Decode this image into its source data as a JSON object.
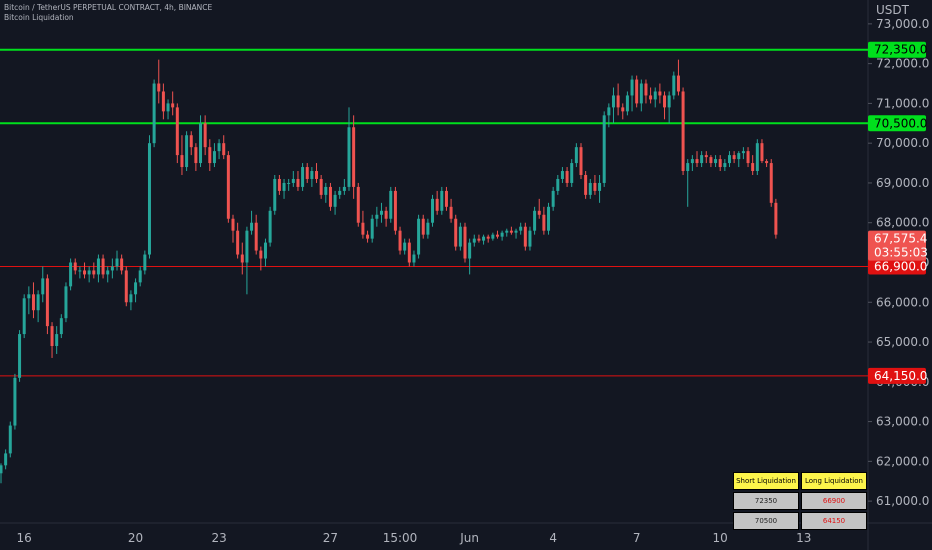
{
  "header": {
    "line1": "Bitcoin / TetherUS PERPETUAL CONTRACT, 4h, BINANCE",
    "line2": "Bitcoin Liquidation"
  },
  "axis": {
    "currency": "USDT"
  },
  "colors": {
    "up": "#26a69a",
    "down": "#ef5350",
    "green_level": "#00e01d",
    "red_level": "#e01111",
    "background": "#131722"
  },
  "chart_data": {
    "type": "candlestick",
    "ylim": [
      60450,
      73600
    ],
    "y_ticks": [
      {
        "value": 61000,
        "label": "61,000.0"
      },
      {
        "value": 62000,
        "label": "62,000.0"
      },
      {
        "value": 63000,
        "label": "63,000.0"
      },
      {
        "value": 64000,
        "label": "64,000.0"
      },
      {
        "value": 65000,
        "label": "65,000.0"
      },
      {
        "value": 66000,
        "label": "66,000.0"
      },
      {
        "value": 67000,
        "label": "67,000.0"
      },
      {
        "value": 68000,
        "label": "68,000.0"
      },
      {
        "value": 69000,
        "label": "69,000.0"
      },
      {
        "value": 70000,
        "label": "70,000.0"
      },
      {
        "value": 71000,
        "label": "71,000.0"
      },
      {
        "value": 72000,
        "label": "72,000.0"
      },
      {
        "value": 73000,
        "label": "73,000.0"
      }
    ],
    "x_ticks": [
      {
        "index": 5,
        "label": "16"
      },
      {
        "index": 29,
        "label": "20"
      },
      {
        "index": 47,
        "label": "23"
      },
      {
        "index": 71,
        "label": "27"
      },
      {
        "index": 86,
        "label": "15:00"
      },
      {
        "index": 101,
        "label": "Jun"
      },
      {
        "index": 119,
        "label": "4"
      },
      {
        "index": 137,
        "label": "7"
      },
      {
        "index": 155,
        "label": "10"
      },
      {
        "index": 173,
        "label": "13"
      }
    ],
    "levels": [
      {
        "value": 72350,
        "label": "72,350.0",
        "kind": "short"
      },
      {
        "value": 70500,
        "label": "70,500.0",
        "kind": "short"
      },
      {
        "value": 66900,
        "label": "66,900.0",
        "kind": "long"
      },
      {
        "value": 64150,
        "label": "64,150.0",
        "kind": "long"
      }
    ],
    "last_price": {
      "value": 67575.4,
      "label": "67,575.4",
      "countdown": "03:55:03"
    },
    "candles": [
      [
        61700,
        61950,
        61450,
        61900
      ],
      [
        61900,
        62300,
        61800,
        62200
      ],
      [
        62200,
        63000,
        62100,
        62900
      ],
      [
        62900,
        64200,
        62800,
        64100
      ],
      [
        64100,
        65300,
        64000,
        65200
      ],
      [
        65200,
        66200,
        65100,
        66100
      ],
      [
        66100,
        66400,
        65700,
        66200
      ],
      [
        66200,
        66500,
        65600,
        65800
      ],
      [
        65800,
        66300,
        65500,
        66200
      ],
      [
        66200,
        66900,
        66000,
        66600
      ],
      [
        66600,
        66700,
        65200,
        65400
      ],
      [
        65400,
        65500,
        64600,
        64900
      ],
      [
        64900,
        65400,
        64700,
        65200
      ],
      [
        65200,
        65700,
        65100,
        65600
      ],
      [
        65600,
        66500,
        65500,
        66400
      ],
      [
        66400,
        67100,
        66300,
        67000
      ],
      [
        67000,
        67100,
        66700,
        66800
      ],
      [
        66800,
        66900,
        66600,
        66800
      ],
      [
        66800,
        67000,
        66600,
        66700
      ],
      [
        66700,
        66900,
        66500,
        66800
      ],
      [
        66800,
        67000,
        66600,
        66700
      ],
      [
        66700,
        67200,
        66500,
        67100
      ],
      [
        67100,
        67200,
        66600,
        66700
      ],
      [
        66700,
        66900,
        66500,
        66800
      ],
      [
        66800,
        67100,
        66600,
        66900
      ],
      [
        66900,
        67300,
        66800,
        67100
      ],
      [
        67100,
        67200,
        66700,
        66800
      ],
      [
        66800,
        66900,
        65900,
        66000
      ],
      [
        66000,
        66300,
        65800,
        66200
      ],
      [
        66200,
        66600,
        66000,
        66500
      ],
      [
        66500,
        66900,
        66400,
        66800
      ],
      [
        66800,
        67300,
        66700,
        67200
      ],
      [
        67200,
        70200,
        67100,
        70000
      ],
      [
        70000,
        71600,
        69900,
        71500
      ],
      [
        71500,
        72100,
        71000,
        71300
      ],
      [
        71300,
        71500,
        70600,
        70800
      ],
      [
        70800,
        71100,
        70600,
        71000
      ],
      [
        71000,
        71300,
        70700,
        70900
      ],
      [
        70900,
        71000,
        69500,
        69700
      ],
      [
        69700,
        70200,
        69200,
        69400
      ],
      [
        69400,
        70300,
        69300,
        70200
      ],
      [
        70200,
        70300,
        69700,
        69900
      ],
      [
        69900,
        70000,
        69300,
        69500
      ],
      [
        69500,
        70700,
        69400,
        70500
      ],
      [
        70500,
        70700,
        69700,
        69900
      ],
      [
        69900,
        70100,
        69300,
        69500
      ],
      [
        69500,
        70000,
        69400,
        69800
      ],
      [
        69800,
        70100,
        69600,
        70000
      ],
      [
        70000,
        70200,
        69600,
        69700
      ],
      [
        69700,
        69800,
        68000,
        68100
      ],
      [
        68100,
        68200,
        67500,
        67800
      ],
      [
        67800,
        68000,
        67100,
        67200
      ],
      [
        67200,
        67500,
        66700,
        67000
      ],
      [
        67000,
        67900,
        66200,
        67800
      ],
      [
        67800,
        68300,
        67700,
        68000
      ],
      [
        68000,
        68200,
        67200,
        67300
      ],
      [
        67300,
        67400,
        66800,
        67100
      ],
      [
        67100,
        67600,
        66900,
        67500
      ],
      [
        67500,
        68400,
        67400,
        68300
      ],
      [
        68300,
        69200,
        68200,
        69100
      ],
      [
        69100,
        69200,
        68700,
        68800
      ],
      [
        68800,
        69100,
        68600,
        69000
      ],
      [
        69000,
        69100,
        68800,
        69000
      ],
      [
        69000,
        69300,
        68900,
        69100
      ],
      [
        69100,
        69300,
        68800,
        68900
      ],
      [
        68900,
        69500,
        68800,
        69400
      ],
      [
        69400,
        69500,
        69000,
        69100
      ],
      [
        69100,
        69400,
        68900,
        69300
      ],
      [
        69300,
        69500,
        69000,
        69100
      ],
      [
        69100,
        69200,
        68600,
        68700
      ],
      [
        68700,
        69000,
        68500,
        68900
      ],
      [
        68900,
        69000,
        68300,
        68400
      ],
      [
        68400,
        68800,
        68200,
        68700
      ],
      [
        68700,
        68900,
        68600,
        68800
      ],
      [
        68800,
        69100,
        68700,
        68900
      ],
      [
        68900,
        70900,
        68800,
        70400
      ],
      [
        70400,
        70700,
        68600,
        68900
      ],
      [
        68900,
        69000,
        67900,
        68000
      ],
      [
        68000,
        68300,
        67600,
        67700
      ],
      [
        67700,
        67800,
        67500,
        67600
      ],
      [
        67600,
        68200,
        67500,
        68100
      ],
      [
        68100,
        68400,
        67900,
        68200
      ],
      [
        68200,
        68500,
        68000,
        68300
      ],
      [
        68300,
        68400,
        67900,
        68100
      ],
      [
        68100,
        68900,
        68000,
        68800
      ],
      [
        68800,
        68900,
        67700,
        67800
      ],
      [
        67800,
        67900,
        67200,
        67300
      ],
      [
        67300,
        67600,
        67200,
        67500
      ],
      [
        67500,
        67600,
        66900,
        67000
      ],
      [
        67000,
        67300,
        66900,
        67200
      ],
      [
        67200,
        68200,
        67100,
        68100
      ],
      [
        68100,
        68200,
        67600,
        67700
      ],
      [
        67700,
        68100,
        67600,
        68000
      ],
      [
        68000,
        68700,
        67900,
        68600
      ],
      [
        68600,
        68800,
        68200,
        68300
      ],
      [
        68300,
        68900,
        68200,
        68800
      ],
      [
        68800,
        68900,
        68300,
        68400
      ],
      [
        68400,
        68600,
        68000,
        68100
      ],
      [
        68100,
        68200,
        67300,
        67400
      ],
      [
        67400,
        68000,
        67300,
        67900
      ],
      [
        67900,
        68000,
        67000,
        67100
      ],
      [
        67100,
        67600,
        66700,
        67500
      ],
      [
        67500,
        67700,
        67400,
        67600
      ],
      [
        67600,
        67700,
        67500,
        67550
      ],
      [
        67550,
        67700,
        67450,
        67650
      ],
      [
        67650,
        67700,
        67500,
        67600
      ],
      [
        67600,
        67750,
        67550,
        67700
      ],
      [
        67700,
        67800,
        67600,
        67650
      ],
      [
        67650,
        67800,
        67550,
        67750
      ],
      [
        67750,
        67850,
        67650,
        67800
      ],
      [
        67800,
        67900,
        67700,
        67750
      ],
      [
        67750,
        67850,
        67600,
        67800
      ],
      [
        67800,
        68000,
        67700,
        67900
      ],
      [
        67900,
        68000,
        67300,
        67400
      ],
      [
        67400,
        67900,
        67300,
        67800
      ],
      [
        67800,
        68400,
        67700,
        68300
      ],
      [
        68300,
        68600,
        68100,
        68200
      ],
      [
        68200,
        68400,
        67700,
        67800
      ],
      [
        67800,
        68500,
        67700,
        68400
      ],
      [
        68400,
        68900,
        68300,
        68800
      ],
      [
        68800,
        69200,
        68700,
        69100
      ],
      [
        69100,
        69400,
        69000,
        69300
      ],
      [
        69300,
        69400,
        68900,
        69000
      ],
      [
        69000,
        69600,
        68900,
        69500
      ],
      [
        69500,
        70000,
        69400,
        69900
      ],
      [
        69900,
        70000,
        69100,
        69200
      ],
      [
        69200,
        69300,
        68600,
        68700
      ],
      [
        68700,
        69100,
        68600,
        69000
      ],
      [
        69000,
        69200,
        68700,
        68800
      ],
      [
        68800,
        69200,
        68500,
        69000
      ],
      [
        69000,
        70800,
        68900,
        70700
      ],
      [
        70700,
        71000,
        70400,
        70900
      ],
      [
        70900,
        71400,
        70500,
        71200
      ],
      [
        71200,
        71500,
        70700,
        70900
      ],
      [
        70900,
        71000,
        70600,
        70800
      ],
      [
        70800,
        71300,
        70700,
        71200
      ],
      [
        71200,
        71700,
        70800,
        71600
      ],
      [
        71600,
        71700,
        70900,
        71000
      ],
      [
        71000,
        71600,
        70800,
        71500
      ],
      [
        71500,
        71600,
        71000,
        71200
      ],
      [
        71200,
        71400,
        71000,
        71100
      ],
      [
        71100,
        71400,
        70900,
        71300
      ],
      [
        71300,
        71500,
        71000,
        71200
      ],
      [
        71200,
        71300,
        70600,
        70900
      ],
      [
        70900,
        71300,
        70500,
        71200
      ],
      [
        71200,
        71800,
        71100,
        71700
      ],
      [
        71700,
        72100,
        71200,
        71300
      ],
      [
        71300,
        71400,
        69200,
        69300
      ],
      [
        69300,
        69600,
        68400,
        69500
      ],
      [
        69500,
        69700,
        69300,
        69600
      ],
      [
        69600,
        69800,
        69400,
        69500
      ],
      [
        69500,
        69800,
        69400,
        69700
      ],
      [
        69700,
        69800,
        69500,
        69650
      ],
      [
        69650,
        69700,
        69400,
        69500
      ],
      [
        69500,
        69700,
        69400,
        69600
      ],
      [
        69600,
        69700,
        69300,
        69400
      ],
      [
        69400,
        69600,
        69300,
        69500
      ],
      [
        69500,
        69800,
        69400,
        69700
      ],
      [
        69700,
        69800,
        69500,
        69600
      ],
      [
        69600,
        69800,
        69400,
        69750
      ],
      [
        69750,
        69900,
        69600,
        69800
      ],
      [
        69800,
        69900,
        69400,
        69500
      ],
      [
        69500,
        69700,
        69200,
        69300
      ],
      [
        69300,
        70100,
        69200,
        70000
      ],
      [
        70000,
        70100,
        69500,
        69550
      ],
      [
        69550,
        69600,
        69400,
        69500
      ],
      [
        69500,
        69600,
        68400,
        68500
      ],
      [
        68500,
        68600,
        67600,
        67700
      ]
    ]
  },
  "table": {
    "headers": [
      "Short Liquidation",
      "Long Liquidation"
    ],
    "rows": [
      [
        "72350",
        "66900"
      ],
      [
        "70500",
        "64150"
      ]
    ]
  }
}
